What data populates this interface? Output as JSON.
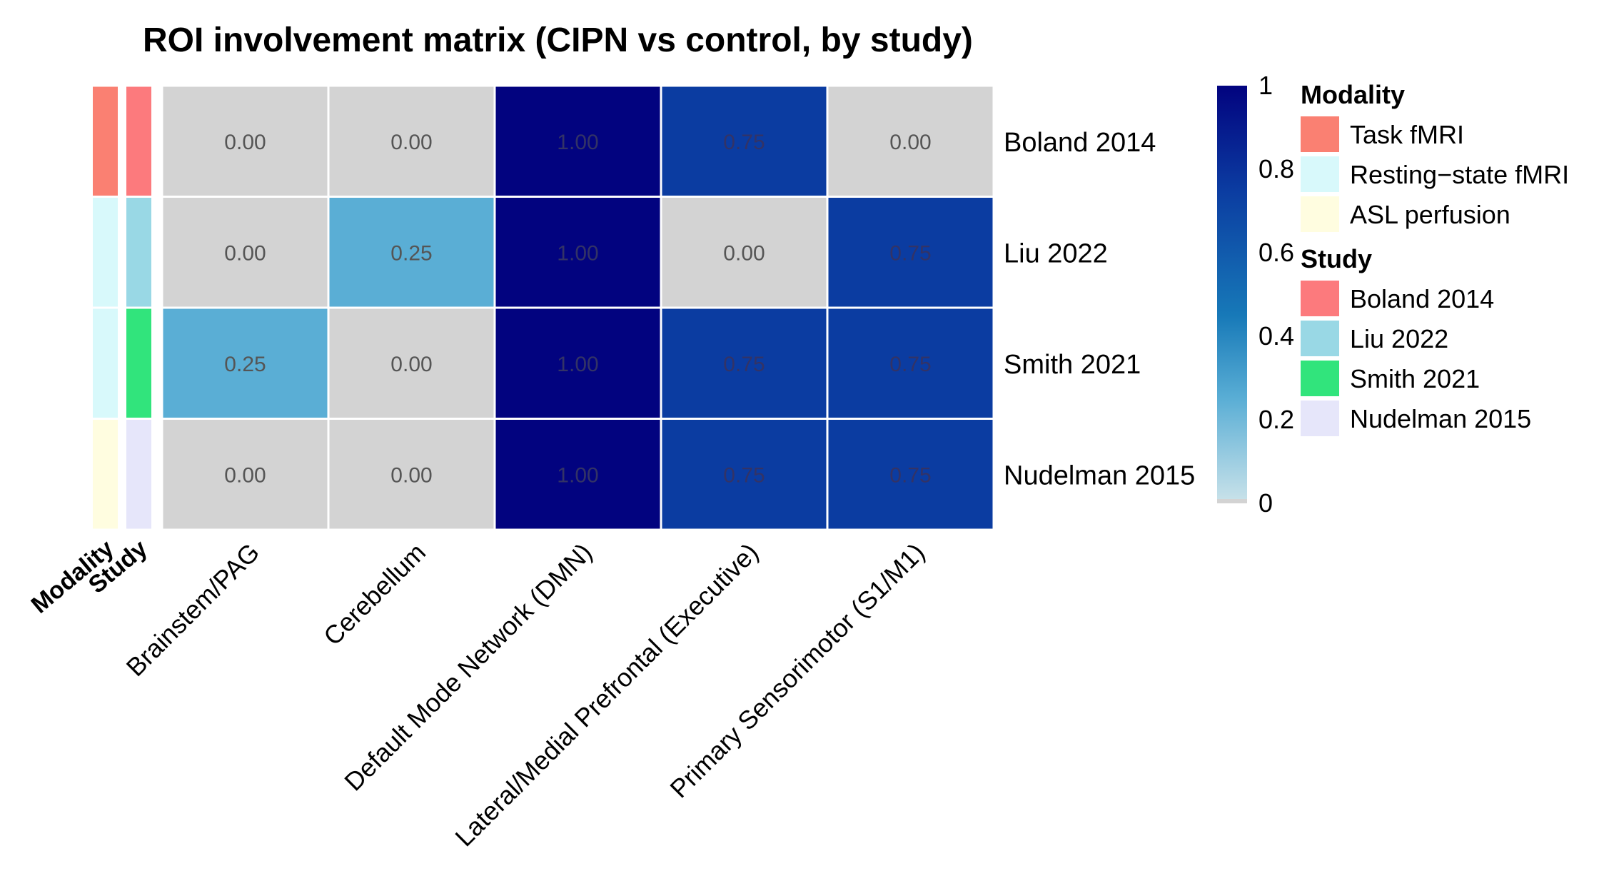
{
  "chart_data": {
    "type": "heatmap",
    "title": "ROI involvement matrix (CIPN vs control, by study)",
    "rows": [
      "Boland 2014",
      "Liu 2022",
      "Smith 2021",
      "Nudelman 2015"
    ],
    "columns": [
      "Brainstem/PAG",
      "Cerebellum",
      "Default Mode Network (DMN)",
      "Lateral/Medial Prefrontal (Executive)",
      "Primary Sensorimotor (S1/M1)"
    ],
    "values": [
      [
        0.0,
        0.0,
        1.0,
        0.75,
        0.0
      ],
      [
        0.0,
        0.25,
        1.0,
        0.0,
        0.75
      ],
      [
        0.25,
        0.0,
        1.0,
        0.75,
        0.75
      ],
      [
        0.0,
        0.0,
        1.0,
        0.75,
        0.75
      ]
    ],
    "value_format": "0.00",
    "row_annotations": {
      "Modality": [
        "Task fMRI",
        "Resting-state fMRI",
        "Resting-state fMRI",
        "ASL perfusion"
      ],
      "Study": [
        "Boland 2014",
        "Liu 2022",
        "Smith 2021",
        "Nudelman 2015"
      ]
    },
    "annotation_track_labels": [
      "Modality",
      "Study"
    ],
    "colorbar": {
      "min": 0,
      "max": 1,
      "ticks": [
        "0",
        "0.2",
        "0.4",
        "0.6",
        "0.8",
        "1"
      ],
      "tick_values": [
        0,
        0.2,
        0.4,
        0.6,
        0.8,
        1
      ],
      "zero_color": "#d3d3d3",
      "stops": [
        {
          "v": 0.0,
          "c": "#cbe3ea"
        },
        {
          "v": 0.25,
          "c": "#5aaed5"
        },
        {
          "v": 0.45,
          "c": "#1779b8"
        },
        {
          "v": 0.75,
          "c": "#0b3ca1"
        },
        {
          "v": 1.0,
          "c": "#02037f"
        }
      ]
    },
    "legends": [
      {
        "title": "Modality",
        "items": [
          {
            "label": "Task fMRI",
            "color": "#fa8072"
          },
          {
            "label": "Resting−state fMRI",
            "color": "#d8f9fb"
          },
          {
            "label": "ASL perfusion",
            "color": "#fffde0"
          }
        ]
      },
      {
        "title": "Study",
        "items": [
          {
            "label": "Boland 2014",
            "color": "#fc7a7d"
          },
          {
            "label": "Liu 2022",
            "color": "#99d8e5"
          },
          {
            "label": "Smith 2021",
            "color": "#31e47c"
          },
          {
            "label": "Nudelman 2015",
            "color": "#e6e6fa"
          }
        ]
      }
    ],
    "modality_colors": {
      "Task fMRI": "#fa8072",
      "Resting-state fMRI": "#d8f9fb",
      "ASL perfusion": "#fffde0"
    },
    "study_colors": {
      "Boland 2014": "#fc7a7d",
      "Liu 2022": "#99d8e5",
      "Smith 2021": "#31e47c",
      "Nudelman 2015": "#e6e6fa"
    }
  }
}
